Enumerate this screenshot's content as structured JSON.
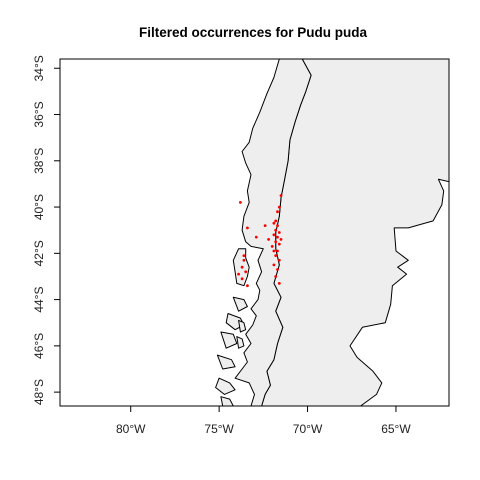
{
  "title": "Filtered occurrences for Pudu puda",
  "map": {
    "lon_range": [
      -84,
      -62
    ],
    "lat_range": [
      -48.6,
      -33.6
    ],
    "land_fill": "#eeeeee",
    "border_color": "#000000",
    "point_color": "#ff0000",
    "x_ticks": [
      {
        "value": -80,
        "label": "80°W"
      },
      {
        "value": -75,
        "label": "75°W"
      },
      {
        "value": -70,
        "label": "70°W"
      },
      {
        "value": -65,
        "label": "65°W"
      }
    ],
    "y_ticks": [
      {
        "value": -34,
        "label": "34°S"
      },
      {
        "value": -36,
        "label": "36°S"
      },
      {
        "value": -38,
        "label": "38°S"
      },
      {
        "value": -40,
        "label": "40°S"
      },
      {
        "value": -42,
        "label": "42°S"
      },
      {
        "value": -44,
        "label": "44°S"
      },
      {
        "value": -46,
        "label": "46°S"
      },
      {
        "value": -48,
        "label": "48°S"
      }
    ],
    "mainland": [
      [
        -73.2,
        -48.6
      ],
      [
        -73.0,
        -48.1
      ],
      [
        -73.3,
        -47.6
      ],
      [
        -74.1,
        -47.4
      ],
      [
        -73.7,
        -47.0
      ],
      [
        -73.4,
        -46.7
      ],
      [
        -73.6,
        -46.3
      ],
      [
        -73.2,
        -45.9
      ],
      [
        -73.5,
        -45.5
      ],
      [
        -73.1,
        -45.1
      ],
      [
        -72.9,
        -44.7
      ],
      [
        -73.2,
        -44.4
      ],
      [
        -72.8,
        -44.0
      ],
      [
        -72.7,
        -43.6
      ],
      [
        -72.9,
        -43.3
      ],
      [
        -72.6,
        -42.8
      ],
      [
        -72.8,
        -42.3
      ],
      [
        -72.5,
        -41.8
      ],
      [
        -73.2,
        -41.7
      ],
      [
        -73.5,
        -41.5
      ],
      [
        -73.7,
        -41.0
      ],
      [
        -73.6,
        -40.4
      ],
      [
        -73.3,
        -39.8
      ],
      [
        -73.4,
        -39.3
      ],
      [
        -73.2,
        -38.6
      ],
      [
        -73.5,
        -38.1
      ],
      [
        -73.7,
        -37.6
      ],
      [
        -73.3,
        -37.2
      ],
      [
        -73.1,
        -36.6
      ],
      [
        -72.7,
        -35.9
      ],
      [
        -72.3,
        -35.1
      ],
      [
        -71.9,
        -34.4
      ],
      [
        -71.6,
        -33.6
      ],
      [
        -70.3,
        -33.6
      ],
      [
        -69.8,
        -34.3
      ],
      [
        -70.1,
        -35.0
      ],
      [
        -70.4,
        -35.6
      ],
      [
        -70.7,
        -36.3
      ],
      [
        -71.0,
        -37.1
      ],
      [
        -71.1,
        -38.0
      ],
      [
        -71.3,
        -38.8
      ],
      [
        -71.5,
        -39.6
      ],
      [
        -71.6,
        -40.4
      ],
      [
        -71.8,
        -41.1
      ],
      [
        -71.8,
        -41.8
      ],
      [
        -71.6,
        -42.5
      ],
      [
        -71.9,
        -43.3
      ],
      [
        -71.5,
        -43.9
      ],
      [
        -71.8,
        -44.5
      ],
      [
        -71.4,
        -45.2
      ],
      [
        -71.7,
        -45.9
      ],
      [
        -71.9,
        -46.6
      ],
      [
        -72.3,
        -47.1
      ],
      [
        -72.1,
        -47.7
      ],
      [
        -72.4,
        -48.1
      ],
      [
        -72.6,
        -48.6
      ]
    ],
    "argentina": [
      [
        -70.3,
        -33.6
      ],
      [
        -62.0,
        -33.6
      ],
      [
        -62.0,
        -38.9
      ],
      [
        -62.6,
        -38.8
      ],
      [
        -62.3,
        -39.3
      ],
      [
        -62.4,
        -39.9
      ],
      [
        -62.9,
        -40.6
      ],
      [
        -64.3,
        -40.9
      ],
      [
        -65.1,
        -40.9
      ],
      [
        -65.0,
        -41.9
      ],
      [
        -64.3,
        -42.3
      ],
      [
        -64.9,
        -42.6
      ],
      [
        -64.4,
        -42.9
      ],
      [
        -65.2,
        -43.4
      ],
      [
        -65.3,
        -44.2
      ],
      [
        -65.6,
        -45.0
      ],
      [
        -66.9,
        -45.2
      ],
      [
        -67.6,
        -46.0
      ],
      [
        -67.2,
        -46.5
      ],
      [
        -66.3,
        -47.1
      ],
      [
        -65.8,
        -47.6
      ],
      [
        -66.1,
        -48.1
      ],
      [
        -67.0,
        -48.6
      ],
      [
        -72.6,
        -48.6
      ],
      [
        -72.4,
        -48.1
      ],
      [
        -72.1,
        -47.7
      ],
      [
        -72.3,
        -47.1
      ],
      [
        -71.9,
        -46.6
      ],
      [
        -71.7,
        -45.9
      ],
      [
        -71.4,
        -45.2
      ],
      [
        -71.8,
        -44.5
      ],
      [
        -71.5,
        -43.9
      ],
      [
        -71.9,
        -43.3
      ],
      [
        -71.6,
        -42.5
      ],
      [
        -71.8,
        -41.8
      ],
      [
        -71.8,
        -41.1
      ],
      [
        -71.6,
        -40.4
      ],
      [
        -71.5,
        -39.6
      ],
      [
        -71.3,
        -38.8
      ],
      [
        -71.1,
        -38.0
      ],
      [
        -71.0,
        -37.1
      ],
      [
        -70.7,
        -36.3
      ],
      [
        -70.4,
        -35.6
      ],
      [
        -70.1,
        -35.0
      ],
      [
        -69.8,
        -34.3
      ]
    ],
    "chiloe": [
      [
        -73.9,
        -41.8
      ],
      [
        -73.5,
        -41.8
      ],
      [
        -73.5,
        -42.2
      ],
      [
        -73.3,
        -42.6
      ],
      [
        -73.4,
        -43.0
      ],
      [
        -73.6,
        -43.4
      ],
      [
        -74.0,
        -43.3
      ],
      [
        -74.1,
        -42.8
      ],
      [
        -74.2,
        -42.3
      ]
    ],
    "islands": [
      [
        [
          -74.2,
          -43.9
        ],
        [
          -73.6,
          -44.0
        ],
        [
          -73.4,
          -44.3
        ],
        [
          -73.9,
          -44.5
        ]
      ],
      [
        [
          -74.5,
          -44.6
        ],
        [
          -73.8,
          -44.8
        ],
        [
          -73.6,
          -45.1
        ],
        [
          -74.1,
          -45.3
        ],
        [
          -74.6,
          -45.0
        ]
      ],
      [
        [
          -74.9,
          -45.4
        ],
        [
          -74.2,
          -45.5
        ],
        [
          -74.0,
          -45.9
        ],
        [
          -74.6,
          -46.1
        ]
      ],
      [
        [
          -75.1,
          -46.4
        ],
        [
          -74.3,
          -46.6
        ],
        [
          -74.1,
          -46.9
        ],
        [
          -74.8,
          -47.0
        ]
      ],
      [
        [
          -75.0,
          -47.4
        ],
        [
          -74.4,
          -47.6
        ],
        [
          -74.1,
          -47.9
        ],
        [
          -74.7,
          -48.1
        ],
        [
          -75.2,
          -47.8
        ]
      ],
      [
        [
          -74.9,
          -48.2
        ],
        [
          -74.4,
          -48.3
        ],
        [
          -74.2,
          -48.6
        ],
        [
          -74.8,
          -48.6
        ]
      ],
      [
        [
          -73.9,
          -44.9
        ],
        [
          -73.6,
          -45.0
        ],
        [
          -73.5,
          -45.3
        ],
        [
          -73.8,
          -45.4
        ]
      ],
      [
        [
          -74.0,
          -45.6
        ],
        [
          -73.7,
          -45.7
        ],
        [
          -73.6,
          -46.0
        ],
        [
          -73.9,
          -46.1
        ]
      ]
    ],
    "occurrences": [
      [
        -73.8,
        -39.8
      ],
      [
        -73.4,
        -40.9
      ],
      [
        -72.9,
        -41.3
      ],
      [
        -73.6,
        -42.3
      ],
      [
        -73.7,
        -42.6
      ],
      [
        -73.5,
        -42.8
      ],
      [
        -73.9,
        -42.9
      ],
      [
        -73.7,
        -43.1
      ],
      [
        -73.4,
        -43.4
      ],
      [
        -73.6,
        -42.1
      ],
      [
        -71.5,
        -39.5
      ],
      [
        -71.7,
        -40.2
      ],
      [
        -71.8,
        -40.6
      ],
      [
        -71.9,
        -40.7
      ],
      [
        -71.7,
        -40.8
      ],
      [
        -71.8,
        -41.0
      ],
      [
        -71.6,
        -41.1
      ],
      [
        -71.9,
        -41.2
      ],
      [
        -71.7,
        -41.3
      ],
      [
        -71.5,
        -41.4
      ],
      [
        -71.8,
        -41.5
      ],
      [
        -71.6,
        -41.6
      ],
      [
        -72.0,
        -41.7
      ],
      [
        -71.7,
        -41.9
      ],
      [
        -71.8,
        -42.1
      ],
      [
        -71.6,
        -42.3
      ],
      [
        -71.9,
        -42.5
      ],
      [
        -71.7,
        -42.7
      ],
      [
        -71.8,
        -43.0
      ],
      [
        -71.6,
        -43.3
      ],
      [
        -72.2,
        -41.4
      ],
      [
        -72.4,
        -40.8
      ],
      [
        -71.6,
        -40.0
      ],
      [
        -71.9,
        -41.9
      ]
    ]
  }
}
